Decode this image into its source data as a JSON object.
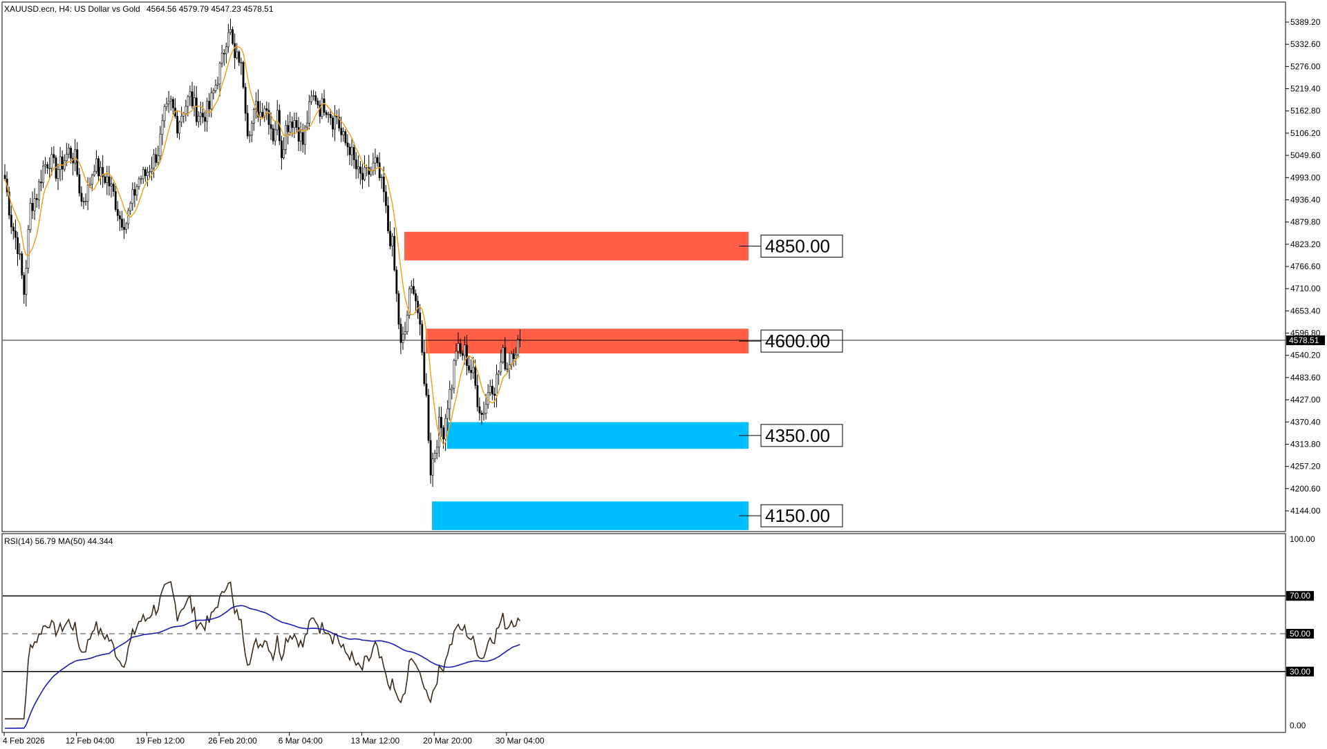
{
  "header": {
    "symbol": "XAUUSD.ecn, H4:  US Dollar vs Gold",
    "ohlc": "4564.56 4579.79 4547.23 4578.51",
    "rsi_label": "RSI(14) 56.79 MA(50) 44.344"
  },
  "colors": {
    "resistance_zone": "#ff6047",
    "support_zone": "#00bfff",
    "candle": "#000000",
    "ma_line": "#f0a020",
    "rsi_line": "#3a2a1a",
    "rsi_ma_line": "#1a1ab0"
  },
  "chart_data": [
    {
      "type": "candlestick",
      "symbol": "XAUUSD.ecn",
      "timeframe": "H4",
      "current_price": 4578.51,
      "current_price_label": "4578.51",
      "ylim": [
        4144.0,
        5389.2
      ],
      "y_tick_labels": [
        "5389.20",
        "5332.60",
        "5276.00",
        "5219.40",
        "5162.80",
        "5106.20",
        "5049.60",
        "4993.00",
        "4936.40",
        "4879.80",
        "4823.20",
        "4766.60",
        "4710.00",
        "4653.40",
        "4596.80",
        "4540.20",
        "4483.60",
        "4427.00",
        "4370.40",
        "4313.80",
        "4257.20",
        "4200.60",
        "4144.00"
      ],
      "x_tick_labels": [
        "4 Feb 2026",
        "12 Feb 04:00",
        "19 Feb 12:00",
        "26 Feb 20:00",
        "6 Mar 04:00",
        "13 Mar 12:00",
        "20 Mar 20:00",
        "30 Mar 04:00"
      ],
      "zones": [
        {
          "label": "4850.00",
          "kind": "resistance",
          "top": 4855,
          "bottom": 4782
        },
        {
          "label": "4600.00",
          "kind": "resistance",
          "top": 4608,
          "bottom": 4545
        },
        {
          "label": "4350.00",
          "kind": "support",
          "top": 4370,
          "bottom": 4302
        },
        {
          "label": "4150.00",
          "kind": "support",
          "top": 4168,
          "bottom": 4095
        }
      ],
      "price_path": [
        [
          0,
          4990
        ],
        [
          3,
          4880
        ],
        [
          6,
          4820
        ],
        [
          9,
          4700
        ],
        [
          12,
          4920
        ],
        [
          15,
          4950
        ],
        [
          18,
          5020
        ],
        [
          21,
          5040
        ],
        [
          24,
          5010
        ],
        [
          27,
          5030
        ],
        [
          30,
          5060
        ],
        [
          33,
          5040
        ],
        [
          36,
          4930
        ],
        [
          39,
          4960
        ],
        [
          42,
          5030
        ],
        [
          45,
          5000
        ],
        [
          48,
          4990
        ],
        [
          51,
          4950
        ],
        [
          54,
          4890
        ],
        [
          57,
          4880
        ],
        [
          60,
          4940
        ],
        [
          63,
          4990
        ],
        [
          66,
          5000
        ],
        [
          69,
          5030
        ],
        [
          72,
          5060
        ],
        [
          75,
          5150
        ],
        [
          78,
          5180
        ],
        [
          81,
          5130
        ],
        [
          84,
          5170
        ],
        [
          87,
          5200
        ],
        [
          90,
          5160
        ],
        [
          93,
          5150
        ],
        [
          96,
          5170
        ],
        [
          99,
          5230
        ],
        [
          102,
          5290
        ],
        [
          105,
          5380
        ],
        [
          106,
          5360
        ],
        [
          108,
          5290
        ],
        [
          110,
          5300
        ],
        [
          112,
          5240
        ],
        [
          114,
          5120
        ],
        [
          116,
          5130
        ],
        [
          118,
          5170
        ],
        [
          120,
          5160
        ],
        [
          122,
          5180
        ],
        [
          124,
          5150
        ],
        [
          126,
          5100
        ],
        [
          128,
          5150
        ],
        [
          130,
          5060
        ],
        [
          132,
          5120
        ],
        [
          134,
          5140
        ],
        [
          136,
          5140
        ],
        [
          138,
          5110
        ],
        [
          140,
          5080
        ],
        [
          142,
          5140
        ],
        [
          144,
          5190
        ],
        [
          146,
          5200
        ],
        [
          148,
          5170
        ],
        [
          150,
          5180
        ],
        [
          152,
          5170
        ],
        [
          154,
          5140
        ],
        [
          156,
          5150
        ],
        [
          158,
          5100
        ],
        [
          160,
          5080
        ],
        [
          162,
          5070
        ],
        [
          164,
          5030
        ],
        [
          166,
          5000
        ],
        [
          168,
          4990
        ],
        [
          170,
          5000
        ],
        [
          172,
          5010
        ],
        [
          174,
          5030
        ],
        [
          176,
          4990
        ],
        [
          178,
          4950
        ],
        [
          180,
          4860
        ],
        [
          182,
          4820
        ],
        [
          184,
          4690
        ],
        [
          186,
          4560
        ],
        [
          188,
          4600
        ],
        [
          190,
          4690
        ],
        [
          192,
          4720
        ],
        [
          194,
          4650
        ],
        [
          196,
          4540
        ],
        [
          198,
          4430
        ],
        [
          200,
          4250
        ],
        [
          202,
          4300
        ],
        [
          204,
          4360
        ],
        [
          206,
          4350
        ],
        [
          208,
          4420
        ],
        [
          210,
          4470
        ],
        [
          212,
          4560
        ],
        [
          214,
          4540
        ],
        [
          216,
          4550
        ],
        [
          218,
          4510
        ],
        [
          220,
          4490
        ],
        [
          222,
          4430
        ],
        [
          224,
          4390
        ],
        [
          226,
          4420
        ],
        [
          228,
          4470
        ],
        [
          230,
          4460
        ],
        [
          232,
          4500
        ],
        [
          234,
          4540
        ],
        [
          236,
          4510
        ],
        [
          238,
          4550
        ],
        [
          240,
          4560
        ],
        [
          242,
          4578.51
        ]
      ]
    },
    {
      "type": "line",
      "indicator": "RSI(14)",
      "rsi_value": 56.79,
      "ma_period": 50,
      "ma_value": 44.344,
      "ylim": [
        0,
        100
      ],
      "y_tick_labels": [
        "100.00",
        "70.00",
        "50.00",
        "30.00",
        "0.00"
      ],
      "levels": [
        70,
        50,
        30
      ]
    }
  ]
}
